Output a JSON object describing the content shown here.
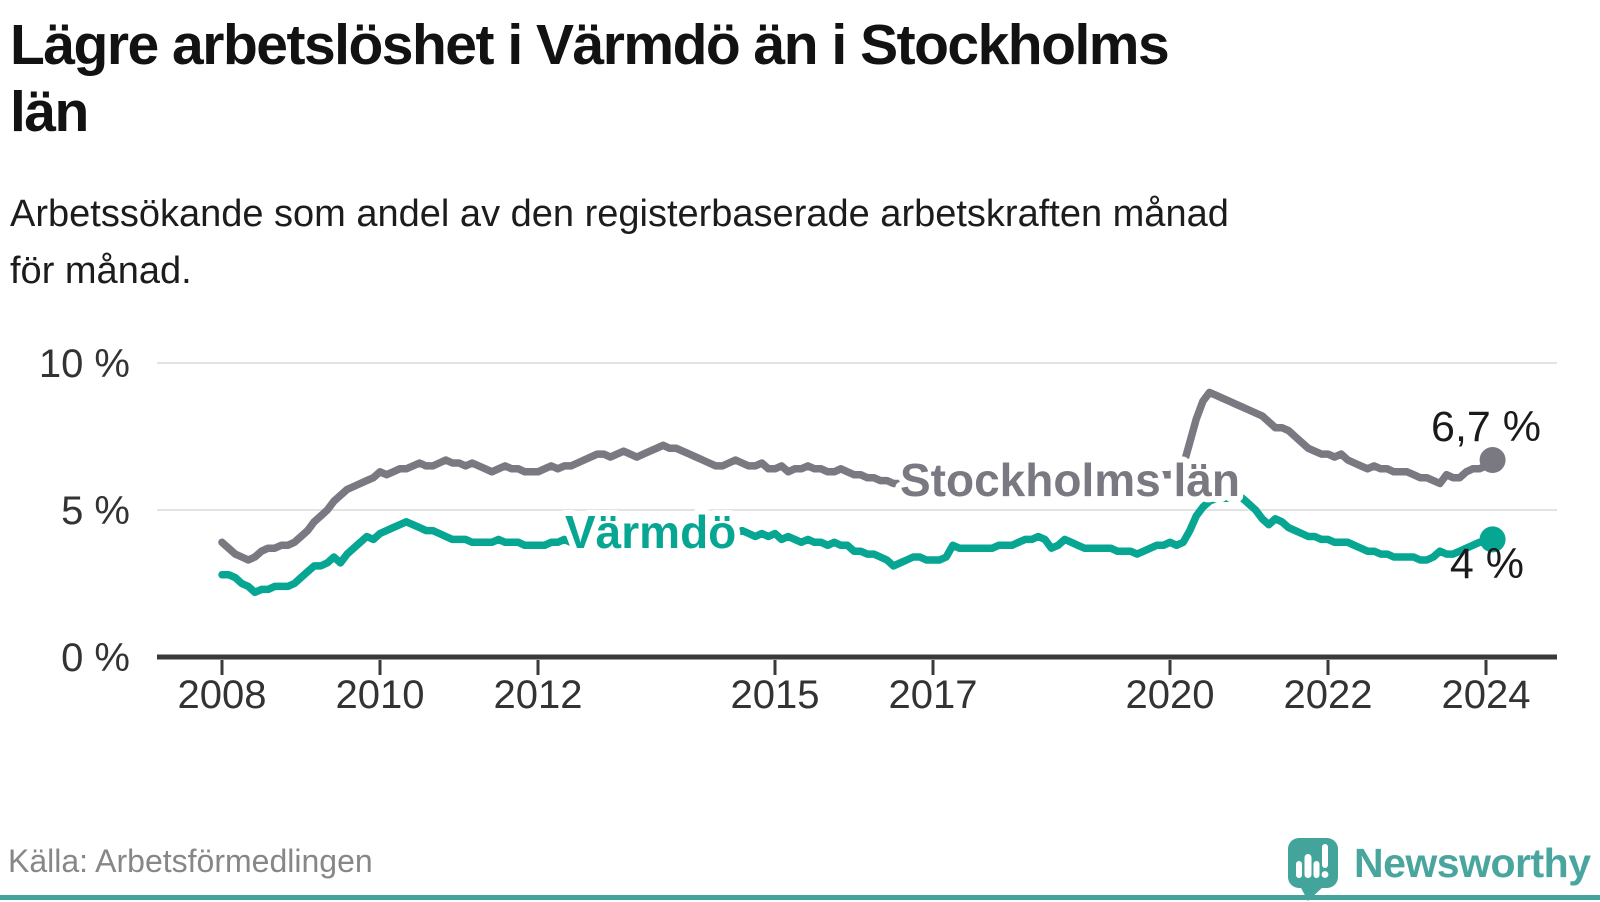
{
  "chart_data": {
    "type": "line",
    "title": "Lägre arbetslöshet i Värmdö än i Stockholms län",
    "title_lines": [
      "Lägre arbetslöshet i Värmdö än i Stockholms",
      "län"
    ],
    "subtitle": "Arbetssökande som andel av den registerbaserade arbetskraften månad för månad.",
    "subtitle_lines": [
      "Arbetssökande som andel av den registerbaserade arbetskraften månad",
      "för månad."
    ],
    "x_unit": "month",
    "x_range": [
      "2008-01",
      "2024-02"
    ],
    "x_ticks": [
      2008,
      2010,
      2012,
      2015,
      2017,
      2020,
      2022,
      2024
    ],
    "ylim": [
      0,
      10
    ],
    "y_ticks": [
      {
        "value": 0,
        "label": "0 %"
      },
      {
        "value": 5,
        "label": "5 %"
      },
      {
        "value": 10,
        "label": "10 %"
      }
    ],
    "grid": "horizontal",
    "legend": "inline-labels",
    "series": [
      {
        "name": "Stockholms län",
        "color": "#7a7880",
        "end_label": "6,7 %",
        "end_value": 6.7,
        "values": [
          3.9,
          3.7,
          3.5,
          3.4,
          3.3,
          3.4,
          3.6,
          3.7,
          3.7,
          3.8,
          3.8,
          3.9,
          4.1,
          4.3,
          4.6,
          4.8,
          5.0,
          5.3,
          5.5,
          5.7,
          5.8,
          5.9,
          6.0,
          6.1,
          6.3,
          6.2,
          6.3,
          6.4,
          6.4,
          6.5,
          6.6,
          6.5,
          6.5,
          6.6,
          6.7,
          6.6,
          6.6,
          6.5,
          6.6,
          6.5,
          6.4,
          6.3,
          6.4,
          6.5,
          6.4,
          6.4,
          6.3,
          6.3,
          6.3,
          6.4,
          6.5,
          6.4,
          6.5,
          6.5,
          6.6,
          6.7,
          6.8,
          6.9,
          6.9,
          6.8,
          6.9,
          7.0,
          6.9,
          6.8,
          6.9,
          7.0,
          7.1,
          7.2,
          7.1,
          7.1,
          7.0,
          6.9,
          6.8,
          6.7,
          6.6,
          6.5,
          6.5,
          6.6,
          6.7,
          6.6,
          6.5,
          6.5,
          6.6,
          6.4,
          6.4,
          6.5,
          6.3,
          6.4,
          6.4,
          6.5,
          6.4,
          6.4,
          6.3,
          6.3,
          6.4,
          6.3,
          6.2,
          6.2,
          6.1,
          6.1,
          6.0,
          6.0,
          5.9,
          5.9,
          6.0,
          5.9,
          5.8,
          5.8,
          5.9,
          5.9,
          6.0,
          6.0,
          6.1,
          6.1,
          6.0,
          6.0,
          6.1,
          6.1,
          6.0,
          6.0,
          6.0,
          5.9,
          5.9,
          5.8,
          5.8,
          5.9,
          5.9,
          5.8,
          5.8,
          5.7,
          5.7,
          5.8,
          5.8,
          5.8,
          5.9,
          5.9,
          6.0,
          6.0,
          6.1,
          6.1,
          6.0,
          6.1,
          6.1,
          6.2,
          6.2,
          6.3,
          6.5,
          7.3,
          8.1,
          8.7,
          9.0,
          8.9,
          8.8,
          8.7,
          8.6,
          8.5,
          8.4,
          8.3,
          8.2,
          8.0,
          7.8,
          7.8,
          7.7,
          7.5,
          7.3,
          7.1,
          7.0,
          6.9,
          6.9,
          6.8,
          6.9,
          6.7,
          6.6,
          6.5,
          6.4,
          6.5,
          6.4,
          6.4,
          6.3,
          6.3,
          6.3,
          6.2,
          6.1,
          6.1,
          6.0,
          5.9,
          6.2,
          6.1,
          6.1,
          6.3,
          6.4,
          6.4,
          6.5,
          6.7
        ]
      },
      {
        "name": "Värmdö",
        "color": "#07a693",
        "end_label": "4 %",
        "end_value": 4.0,
        "values": [
          2.8,
          2.8,
          2.7,
          2.5,
          2.4,
          2.2,
          2.3,
          2.3,
          2.4,
          2.4,
          2.4,
          2.5,
          2.7,
          2.9,
          3.1,
          3.1,
          3.2,
          3.4,
          3.2,
          3.5,
          3.7,
          3.9,
          4.1,
          4.0,
          4.2,
          4.3,
          4.4,
          4.5,
          4.6,
          4.5,
          4.4,
          4.3,
          4.3,
          4.2,
          4.1,
          4.0,
          4.0,
          4.0,
          3.9,
          3.9,
          3.9,
          3.9,
          4.0,
          3.9,
          3.9,
          3.9,
          3.8,
          3.8,
          3.8,
          3.8,
          3.9,
          3.9,
          4.0,
          3.9,
          3.8,
          3.9,
          4.0,
          4.0,
          3.9,
          3.9,
          4.0,
          4.1,
          4.1,
          4.0,
          4.1,
          4.2,
          4.2,
          4.3,
          4.2,
          4.2,
          4.1,
          4.1,
          4.2,
          4.1,
          4.1,
          4.0,
          4.1,
          4.1,
          4.2,
          4.3,
          4.2,
          4.1,
          4.2,
          4.1,
          4.2,
          4.0,
          4.1,
          4.0,
          3.9,
          4.0,
          3.9,
          3.9,
          3.8,
          3.9,
          3.8,
          3.8,
          3.6,
          3.6,
          3.5,
          3.5,
          3.4,
          3.3,
          3.1,
          3.2,
          3.3,
          3.4,
          3.4,
          3.3,
          3.3,
          3.3,
          3.4,
          3.8,
          3.7,
          3.7,
          3.7,
          3.7,
          3.7,
          3.7,
          3.8,
          3.8,
          3.8,
          3.9,
          4.0,
          4.0,
          4.1,
          4.0,
          3.7,
          3.8,
          4.0,
          3.9,
          3.8,
          3.7,
          3.7,
          3.7,
          3.7,
          3.7,
          3.6,
          3.6,
          3.6,
          3.5,
          3.6,
          3.7,
          3.8,
          3.8,
          3.9,
          3.8,
          3.9,
          4.3,
          4.8,
          5.1,
          5.3,
          5.4,
          5.4,
          5.4,
          5.5,
          5.4,
          5.2,
          5.0,
          4.7,
          4.5,
          4.7,
          4.6,
          4.4,
          4.3,
          4.2,
          4.1,
          4.1,
          4.0,
          4.0,
          3.9,
          3.9,
          3.9,
          3.8,
          3.7,
          3.6,
          3.6,
          3.5,
          3.5,
          3.4,
          3.4,
          3.4,
          3.4,
          3.3,
          3.3,
          3.4,
          3.6,
          3.5,
          3.5,
          3.6,
          3.7,
          3.8,
          3.9,
          3.9,
          4.0
        ]
      }
    ]
  },
  "footer": {
    "source": "Källa: Arbetsförmedlingen",
    "brand_name": "Newsworthy",
    "brand_color": "#43a49b",
    "brand_text_color": "#4aa59f"
  }
}
